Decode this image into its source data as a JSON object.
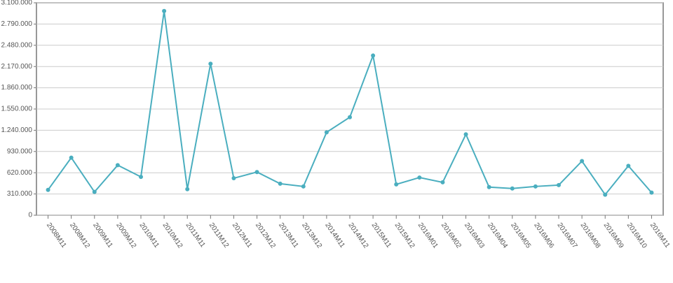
{
  "chart_data": {
    "type": "line",
    "categories": [
      "2008M11",
      "2008M12",
      "2009M11",
      "2009M12",
      "2010M11",
      "2010M12",
      "2011M11",
      "2011M12",
      "2012M11",
      "2012M12",
      "2013M11",
      "2013M12",
      "2014M11",
      "2014M12",
      "2015M11",
      "2015M12",
      "2016M01",
      "2016M02",
      "2016M03",
      "2016M04",
      "2016M05",
      "2016M06",
      "2016M07",
      "2016M08",
      "2016M09",
      "2016M10",
      "2016M11"
    ],
    "series": [
      {
        "color": "#4aaebf",
        "values": [
          370000,
          840000,
          340000,
          730000,
          560000,
          2980000,
          380000,
          2210000,
          540000,
          630000,
          460000,
          420000,
          1210000,
          1430000,
          2330000,
          450000,
          550000,
          480000,
          1180000,
          410000,
          390000,
          420000,
          440000,
          790000,
          300000,
          720000,
          330000
        ]
      }
    ],
    "ylim": [
      0,
      3100000
    ],
    "yticks": [
      0,
      {
        "value": 310000,
        "label": "310.000"
      },
      {
        "value": 620000,
        "label": "620.000"
      },
      {
        "value": 930000,
        "label": "930.000"
      },
      {
        "value": 1240000,
        "label": "1.240.000"
      },
      {
        "value": 1550000,
        "label": "1.550.000"
      },
      {
        "value": 1860000,
        "label": "1.860.000"
      },
      {
        "value": 2170000,
        "label": "2.170.000"
      },
      {
        "value": 2480000,
        "label": "2.480.000"
      },
      {
        "value": 2790000,
        "label": "2.790.000"
      },
      {
        "value": 3100000,
        "label": "3.100.000"
      }
    ],
    "grid": true
  }
}
